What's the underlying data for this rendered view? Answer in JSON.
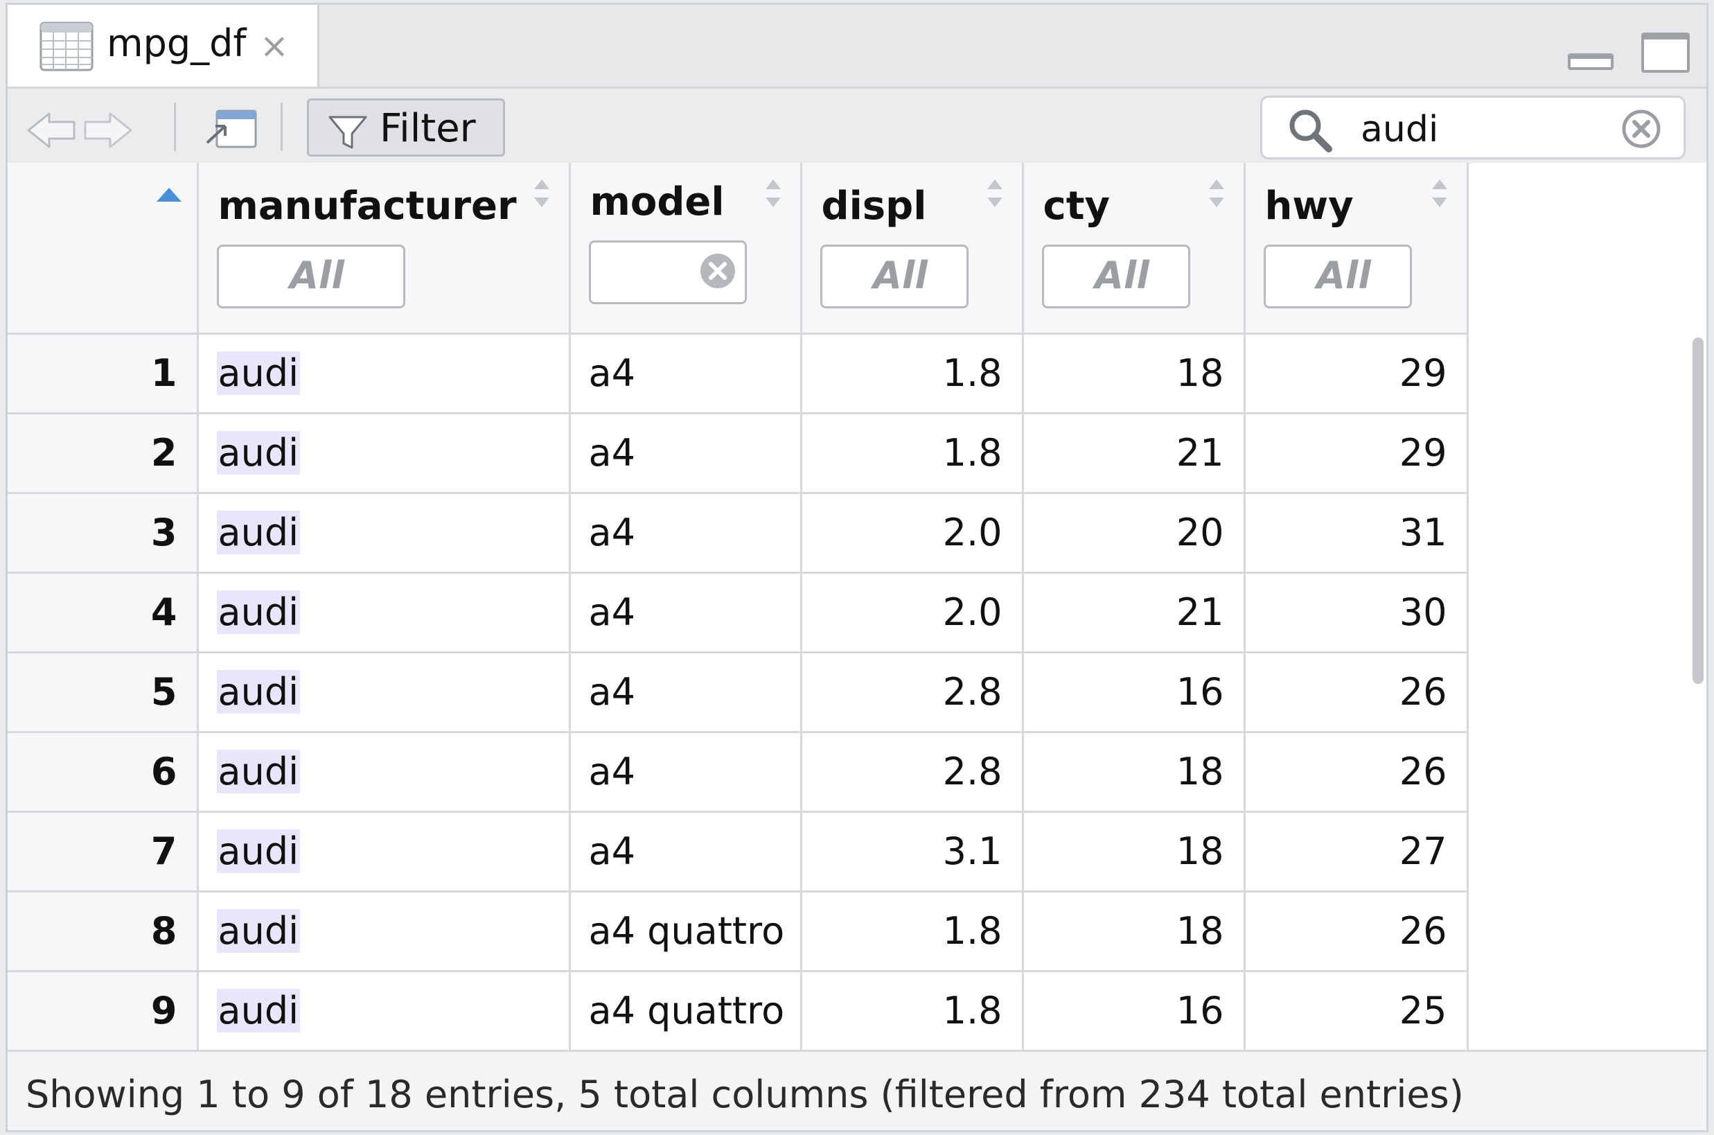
{
  "tab": {
    "title": "mpg_df",
    "close": "×"
  },
  "toolbar": {
    "filter_label": "Filter",
    "search_value": "audi"
  },
  "columns": [
    {
      "label": "manufacturer",
      "filter_placeholder": "All"
    },
    {
      "label": "model",
      "filter_value": ""
    },
    {
      "label": "displ",
      "filter_placeholder": "All"
    },
    {
      "label": "cty",
      "filter_placeholder": "All"
    },
    {
      "label": "hwy",
      "filter_placeholder": "All"
    }
  ],
  "rows": [
    {
      "idx": "1",
      "manufacturer": "audi",
      "model": "a4",
      "displ": "1.8",
      "cty": "18",
      "hwy": "29"
    },
    {
      "idx": "2",
      "manufacturer": "audi",
      "model": "a4",
      "displ": "1.8",
      "cty": "21",
      "hwy": "29"
    },
    {
      "idx": "3",
      "manufacturer": "audi",
      "model": "a4",
      "displ": "2.0",
      "cty": "20",
      "hwy": "31"
    },
    {
      "idx": "4",
      "manufacturer": "audi",
      "model": "a4",
      "displ": "2.0",
      "cty": "21",
      "hwy": "30"
    },
    {
      "idx": "5",
      "manufacturer": "audi",
      "model": "a4",
      "displ": "2.8",
      "cty": "16",
      "hwy": "26"
    },
    {
      "idx": "6",
      "manufacturer": "audi",
      "model": "a4",
      "displ": "2.8",
      "cty": "18",
      "hwy": "26"
    },
    {
      "idx": "7",
      "manufacturer": "audi",
      "model": "a4",
      "displ": "3.1",
      "cty": "18",
      "hwy": "27"
    },
    {
      "idx": "8",
      "manufacturer": "audi",
      "model": "a4 quattro",
      "displ": "1.8",
      "cty": "18",
      "hwy": "26"
    },
    {
      "idx": "9",
      "manufacturer": "audi",
      "model": "a4 quattro",
      "displ": "1.8",
      "cty": "16",
      "hwy": "25"
    }
  ],
  "footer": {
    "status": "Showing 1 to 9 of 18 entries, 5 total columns (filtered from 234 total entries)"
  },
  "colors": {
    "highlight": "#e8e6fb",
    "sort_active": "#4a90d9"
  }
}
